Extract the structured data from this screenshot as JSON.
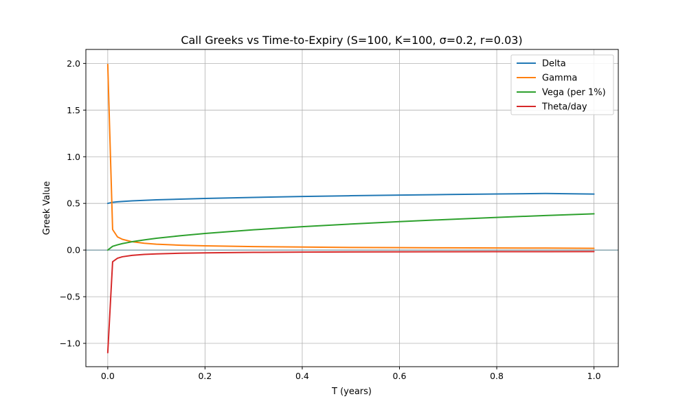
{
  "chart_data": {
    "type": "line",
    "title": "Call Greeks vs Time-to-Expiry (S=100, K=100, σ=0.2, r=0.03)",
    "xlabel": "T (years)",
    "ylabel": "Greek Value",
    "xlim": [
      -0.045,
      1.05
    ],
    "ylim": [
      -1.25,
      2.15
    ],
    "xticks": [
      0.0,
      0.2,
      0.4,
      0.6,
      0.8,
      1.0
    ],
    "xtick_labels": [
      "0.0",
      "0.2",
      "0.4",
      "0.6",
      "0.8",
      "1.0"
    ],
    "yticks": [
      -1.0,
      -0.5,
      0.0,
      0.5,
      1.0,
      1.5,
      2.0
    ],
    "ytick_labels": [
      "−1.0",
      "−0.5",
      "0.0",
      "0.5",
      "1.0",
      "1.5",
      "2.0"
    ],
    "grid": true,
    "zero_line": true,
    "legend_position": "top-right",
    "x": [
      0.0,
      0.01,
      0.02,
      0.03,
      0.05,
      0.075,
      0.1,
      0.15,
      0.2,
      0.3,
      0.4,
      0.5,
      0.6,
      0.7,
      0.8,
      0.9,
      1.0
    ],
    "series": [
      {
        "name": "Delta",
        "color": "#1f77b4",
        "values": [
          0.5,
          0.512,
          0.517,
          0.521,
          0.527,
          0.533,
          0.538,
          0.546,
          0.553,
          0.564,
          0.574,
          0.582,
          0.589,
          0.595,
          0.601,
          0.606,
          0.6
        ]
      },
      {
        "name": "Gamma",
        "color": "#ff7f0e",
        "values": [
          1.99,
          0.22,
          0.141,
          0.115,
          0.089,
          0.073,
          0.063,
          0.052,
          0.045,
          0.037,
          0.032,
          0.028,
          0.026,
          0.024,
          0.022,
          0.021,
          0.019
        ]
      },
      {
        "name": "Vega (per 1%)",
        "color": "#2ca02c",
        "values": [
          0.0,
          0.04,
          0.056,
          0.069,
          0.089,
          0.109,
          0.126,
          0.154,
          0.178,
          0.217,
          0.25,
          0.279,
          0.305,
          0.328,
          0.35,
          0.37,
          0.388
        ]
      },
      {
        "name": "Theta/day",
        "color": "#d62728",
        "values": [
          -1.1,
          -0.125,
          -0.088,
          -0.072,
          -0.057,
          -0.047,
          -0.041,
          -0.034,
          -0.03,
          -0.025,
          -0.022,
          -0.02,
          -0.019,
          -0.018,
          -0.017,
          -0.017,
          -0.016
        ]
      }
    ]
  }
}
